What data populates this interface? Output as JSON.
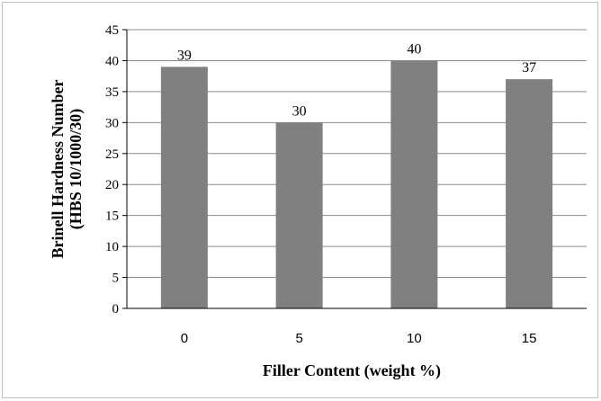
{
  "chart_data": {
    "type": "bar",
    "categories": [
      "0",
      "5",
      "10",
      "15"
    ],
    "values": [
      39,
      30,
      40,
      37
    ],
    "data_labels": [
      "39",
      "30",
      "40",
      "37"
    ],
    "title": "",
    "xlabel": "Filler Content (weight %)",
    "ylabel_line1": "Brinell Hardness  Number",
    "ylabel_line2": "(HBS 10/1000/30)",
    "ylim": [
      0,
      45
    ],
    "yticks": [
      "0",
      "5",
      "10",
      "15",
      "20",
      "25",
      "30",
      "35",
      "40",
      "45"
    ],
    "grid": true,
    "legend": "none",
    "colors": {
      "bar": "#808080",
      "grid": "#8c8c8c",
      "axis": "#000000",
      "frame": "#bfbfbf"
    }
  }
}
